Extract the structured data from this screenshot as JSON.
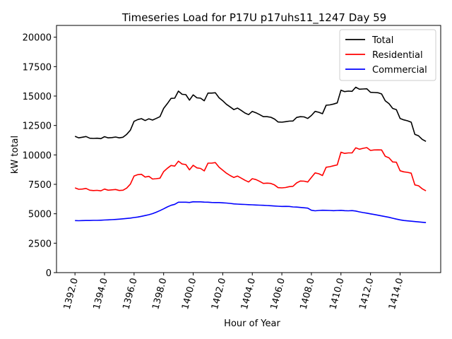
{
  "chart_data": {
    "type": "line",
    "title": "Timeseries Load for P17U p17uhs11_1247  Day 59",
    "xlabel": "Hour of Year",
    "ylabel": "kW total",
    "xlim": [
      1390.75,
      1416.75
    ],
    "ylim": [
      0,
      21000
    ],
    "x_ticks": [
      1392,
      1394,
      1396,
      1398,
      1400,
      1402,
      1404,
      1406,
      1408,
      1410,
      1412,
      1414
    ],
    "x_tick_labels": [
      "1392.0",
      "1394.0",
      "1396.0",
      "1398.0",
      "1400.0",
      "1402.0",
      "1404.0",
      "1406.0",
      "1408.0",
      "1410.0",
      "1412.0",
      "1414.0"
    ],
    "y_ticks": [
      0,
      2500,
      5000,
      7500,
      10000,
      12500,
      15000,
      17500,
      20000
    ],
    "y_tick_labels": [
      "0",
      "2500",
      "5000",
      "7500",
      "10000",
      "12500",
      "15000",
      "17500",
      "20000"
    ],
    "legend_position": "top-right",
    "series": [
      {
        "name": "Total",
        "color": "#000000",
        "points": [
          [
            1392.0,
            11580
          ],
          [
            1392.25,
            11450
          ],
          [
            1392.5,
            11500
          ],
          [
            1392.75,
            11560
          ],
          [
            1393.0,
            11420
          ],
          [
            1393.25,
            11400
          ],
          [
            1393.5,
            11420
          ],
          [
            1393.75,
            11380
          ],
          [
            1394.0,
            11550
          ],
          [
            1394.25,
            11450
          ],
          [
            1394.5,
            11470
          ],
          [
            1394.75,
            11520
          ],
          [
            1395.0,
            11450
          ],
          [
            1395.25,
            11500
          ],
          [
            1395.5,
            11750
          ],
          [
            1395.75,
            12100
          ],
          [
            1396.0,
            12850
          ],
          [
            1396.25,
            13000
          ],
          [
            1396.5,
            13080
          ],
          [
            1396.75,
            12920
          ],
          [
            1397.0,
            13070
          ],
          [
            1397.25,
            12960
          ],
          [
            1397.5,
            13100
          ],
          [
            1397.75,
            13250
          ],
          [
            1398.0,
            13950
          ],
          [
            1398.25,
            14350
          ],
          [
            1398.5,
            14800
          ],
          [
            1398.75,
            14820
          ],
          [
            1399.0,
            15420
          ],
          [
            1399.25,
            15150
          ],
          [
            1399.5,
            15120
          ],
          [
            1399.75,
            14650
          ],
          [
            1400.0,
            15100
          ],
          [
            1400.25,
            14850
          ],
          [
            1400.5,
            14820
          ],
          [
            1400.75,
            14600
          ],
          [
            1401.0,
            15250
          ],
          [
            1401.25,
            15250
          ],
          [
            1401.5,
            15280
          ],
          [
            1401.75,
            14850
          ],
          [
            1402.0,
            14600
          ],
          [
            1402.25,
            14300
          ],
          [
            1402.5,
            14080
          ],
          [
            1402.75,
            13850
          ],
          [
            1403.0,
            13980
          ],
          [
            1403.25,
            13780
          ],
          [
            1403.5,
            13560
          ],
          [
            1403.75,
            13420
          ],
          [
            1404.0,
            13700
          ],
          [
            1404.25,
            13580
          ],
          [
            1404.5,
            13420
          ],
          [
            1404.75,
            13250
          ],
          [
            1405.0,
            13250
          ],
          [
            1405.25,
            13200
          ],
          [
            1405.5,
            13050
          ],
          [
            1405.75,
            12800
          ],
          [
            1406.0,
            12780
          ],
          [
            1406.25,
            12820
          ],
          [
            1406.5,
            12870
          ],
          [
            1406.75,
            12880
          ],
          [
            1407.0,
            13180
          ],
          [
            1407.25,
            13250
          ],
          [
            1407.5,
            13230
          ],
          [
            1407.75,
            13100
          ],
          [
            1408.0,
            13350
          ],
          [
            1408.25,
            13700
          ],
          [
            1408.5,
            13620
          ],
          [
            1408.75,
            13500
          ],
          [
            1409.0,
            14220
          ],
          [
            1409.25,
            14250
          ],
          [
            1409.5,
            14320
          ],
          [
            1409.75,
            14420
          ],
          [
            1410.0,
            15500
          ],
          [
            1410.25,
            15380
          ],
          [
            1410.5,
            15420
          ],
          [
            1410.75,
            15400
          ],
          [
            1411.0,
            15750
          ],
          [
            1411.25,
            15580
          ],
          [
            1411.5,
            15600
          ],
          [
            1411.75,
            15620
          ],
          [
            1412.0,
            15320
          ],
          [
            1412.25,
            15300
          ],
          [
            1412.5,
            15280
          ],
          [
            1412.75,
            15180
          ],
          [
            1413.0,
            14600
          ],
          [
            1413.25,
            14350
          ],
          [
            1413.5,
            13950
          ],
          [
            1413.75,
            13850
          ],
          [
            1414.0,
            13100
          ],
          [
            1414.25,
            12980
          ],
          [
            1414.5,
            12900
          ],
          [
            1414.75,
            12780
          ],
          [
            1415.0,
            11750
          ],
          [
            1415.25,
            11620
          ],
          [
            1415.5,
            11320
          ],
          [
            1415.75,
            11150
          ]
        ]
      },
      {
        "name": "Residential",
        "color": "#ff0000",
        "points": [
          [
            1392.0,
            7200
          ],
          [
            1392.25,
            7080
          ],
          [
            1392.5,
            7100
          ],
          [
            1392.75,
            7150
          ],
          [
            1393.0,
            7000
          ],
          [
            1393.25,
            6970
          ],
          [
            1393.5,
            6990
          ],
          [
            1393.75,
            6950
          ],
          [
            1394.0,
            7100
          ],
          [
            1394.25,
            7000
          ],
          [
            1394.5,
            7030
          ],
          [
            1394.75,
            7060
          ],
          [
            1395.0,
            6980
          ],
          [
            1395.25,
            7000
          ],
          [
            1395.5,
            7180
          ],
          [
            1395.75,
            7520
          ],
          [
            1396.0,
            8200
          ],
          [
            1396.25,
            8320
          ],
          [
            1396.5,
            8350
          ],
          [
            1396.75,
            8120
          ],
          [
            1397.0,
            8180
          ],
          [
            1397.25,
            7950
          ],
          [
            1397.5,
            7980
          ],
          [
            1397.75,
            8020
          ],
          [
            1398.0,
            8580
          ],
          [
            1398.25,
            8860
          ],
          [
            1398.5,
            9100
          ],
          [
            1398.75,
            9050
          ],
          [
            1399.0,
            9470
          ],
          [
            1399.25,
            9230
          ],
          [
            1399.5,
            9180
          ],
          [
            1399.75,
            8730
          ],
          [
            1400.0,
            9120
          ],
          [
            1400.25,
            8900
          ],
          [
            1400.5,
            8850
          ],
          [
            1400.75,
            8640
          ],
          [
            1401.0,
            9300
          ],
          [
            1401.25,
            9300
          ],
          [
            1401.5,
            9350
          ],
          [
            1401.75,
            8950
          ],
          [
            1402.0,
            8700
          ],
          [
            1402.25,
            8450
          ],
          [
            1402.5,
            8250
          ],
          [
            1402.75,
            8080
          ],
          [
            1403.0,
            8200
          ],
          [
            1403.25,
            8030
          ],
          [
            1403.5,
            7850
          ],
          [
            1403.75,
            7700
          ],
          [
            1404.0,
            7980
          ],
          [
            1404.25,
            7900
          ],
          [
            1404.5,
            7750
          ],
          [
            1404.75,
            7580
          ],
          [
            1405.0,
            7600
          ],
          [
            1405.25,
            7580
          ],
          [
            1405.5,
            7450
          ],
          [
            1405.75,
            7220
          ],
          [
            1406.0,
            7200
          ],
          [
            1406.25,
            7230
          ],
          [
            1406.5,
            7300
          ],
          [
            1406.75,
            7330
          ],
          [
            1407.0,
            7620
          ],
          [
            1407.25,
            7780
          ],
          [
            1407.5,
            7770
          ],
          [
            1407.75,
            7700
          ],
          [
            1408.0,
            8080
          ],
          [
            1408.25,
            8470
          ],
          [
            1408.5,
            8400
          ],
          [
            1408.75,
            8250
          ],
          [
            1409.0,
            8950
          ],
          [
            1409.25,
            9000
          ],
          [
            1409.5,
            9080
          ],
          [
            1409.75,
            9150
          ],
          [
            1410.0,
            10230
          ],
          [
            1410.25,
            10130
          ],
          [
            1410.5,
            10170
          ],
          [
            1410.75,
            10170
          ],
          [
            1411.0,
            10600
          ],
          [
            1411.25,
            10480
          ],
          [
            1411.5,
            10560
          ],
          [
            1411.75,
            10620
          ],
          [
            1412.0,
            10380
          ],
          [
            1412.25,
            10420
          ],
          [
            1412.5,
            10430
          ],
          [
            1412.75,
            10420
          ],
          [
            1413.0,
            9880
          ],
          [
            1413.25,
            9750
          ],
          [
            1413.5,
            9400
          ],
          [
            1413.75,
            9380
          ],
          [
            1414.0,
            8650
          ],
          [
            1414.25,
            8560
          ],
          [
            1414.5,
            8520
          ],
          [
            1414.75,
            8450
          ],
          [
            1415.0,
            7450
          ],
          [
            1415.25,
            7380
          ],
          [
            1415.5,
            7120
          ],
          [
            1415.75,
            6950
          ]
        ]
      },
      {
        "name": "Commercial",
        "color": "#0000ff",
        "points": [
          [
            1392.0,
            4420
          ],
          [
            1392.25,
            4410
          ],
          [
            1392.5,
            4420
          ],
          [
            1392.75,
            4430
          ],
          [
            1393.0,
            4430
          ],
          [
            1393.25,
            4440
          ],
          [
            1393.5,
            4440
          ],
          [
            1393.75,
            4450
          ],
          [
            1394.0,
            4470
          ],
          [
            1394.25,
            4480
          ],
          [
            1394.5,
            4500
          ],
          [
            1394.75,
            4520
          ],
          [
            1395.0,
            4540
          ],
          [
            1395.25,
            4570
          ],
          [
            1395.5,
            4600
          ],
          [
            1395.75,
            4630
          ],
          [
            1396.0,
            4680
          ],
          [
            1396.25,
            4720
          ],
          [
            1396.5,
            4780
          ],
          [
            1396.75,
            4850
          ],
          [
            1397.0,
            4920
          ],
          [
            1397.25,
            5010
          ],
          [
            1397.5,
            5130
          ],
          [
            1397.75,
            5270
          ],
          [
            1398.0,
            5420
          ],
          [
            1398.25,
            5580
          ],
          [
            1398.5,
            5720
          ],
          [
            1398.75,
            5800
          ],
          [
            1399.0,
            5980
          ],
          [
            1399.25,
            5980
          ],
          [
            1399.5,
            5980
          ],
          [
            1399.75,
            5960
          ],
          [
            1400.0,
            6020
          ],
          [
            1400.25,
            6010
          ],
          [
            1400.5,
            6010
          ],
          [
            1400.75,
            5990
          ],
          [
            1401.0,
            5980
          ],
          [
            1401.25,
            5960
          ],
          [
            1401.5,
            5950
          ],
          [
            1401.75,
            5950
          ],
          [
            1402.0,
            5930
          ],
          [
            1402.25,
            5910
          ],
          [
            1402.5,
            5880
          ],
          [
            1402.75,
            5840
          ],
          [
            1403.0,
            5820
          ],
          [
            1403.25,
            5800
          ],
          [
            1403.5,
            5790
          ],
          [
            1403.75,
            5770
          ],
          [
            1404.0,
            5760
          ],
          [
            1404.25,
            5740
          ],
          [
            1404.5,
            5730
          ],
          [
            1404.75,
            5720
          ],
          [
            1405.0,
            5700
          ],
          [
            1405.25,
            5680
          ],
          [
            1405.5,
            5660
          ],
          [
            1405.75,
            5640
          ],
          [
            1406.0,
            5620
          ],
          [
            1406.25,
            5630
          ],
          [
            1406.5,
            5620
          ],
          [
            1406.75,
            5580
          ],
          [
            1407.0,
            5570
          ],
          [
            1407.25,
            5540
          ],
          [
            1407.5,
            5510
          ],
          [
            1407.75,
            5480
          ],
          [
            1408.0,
            5300
          ],
          [
            1408.25,
            5250
          ],
          [
            1408.5,
            5280
          ],
          [
            1408.75,
            5300
          ],
          [
            1409.0,
            5290
          ],
          [
            1409.25,
            5280
          ],
          [
            1409.5,
            5260
          ],
          [
            1409.75,
            5280
          ],
          [
            1410.0,
            5290
          ],
          [
            1410.25,
            5260
          ],
          [
            1410.5,
            5250
          ],
          [
            1410.75,
            5270
          ],
          [
            1411.0,
            5230
          ],
          [
            1411.25,
            5160
          ],
          [
            1411.5,
            5100
          ],
          [
            1411.75,
            5050
          ],
          [
            1412.0,
            4990
          ],
          [
            1412.25,
            4940
          ],
          [
            1412.5,
            4880
          ],
          [
            1412.75,
            4820
          ],
          [
            1413.0,
            4760
          ],
          [
            1413.25,
            4700
          ],
          [
            1413.5,
            4620
          ],
          [
            1413.75,
            4550
          ],
          [
            1414.0,
            4480
          ],
          [
            1414.25,
            4430
          ],
          [
            1414.5,
            4400
          ],
          [
            1414.75,
            4370
          ],
          [
            1415.0,
            4340
          ],
          [
            1415.25,
            4310
          ],
          [
            1415.5,
            4280
          ],
          [
            1415.75,
            4250
          ]
        ]
      }
    ]
  }
}
